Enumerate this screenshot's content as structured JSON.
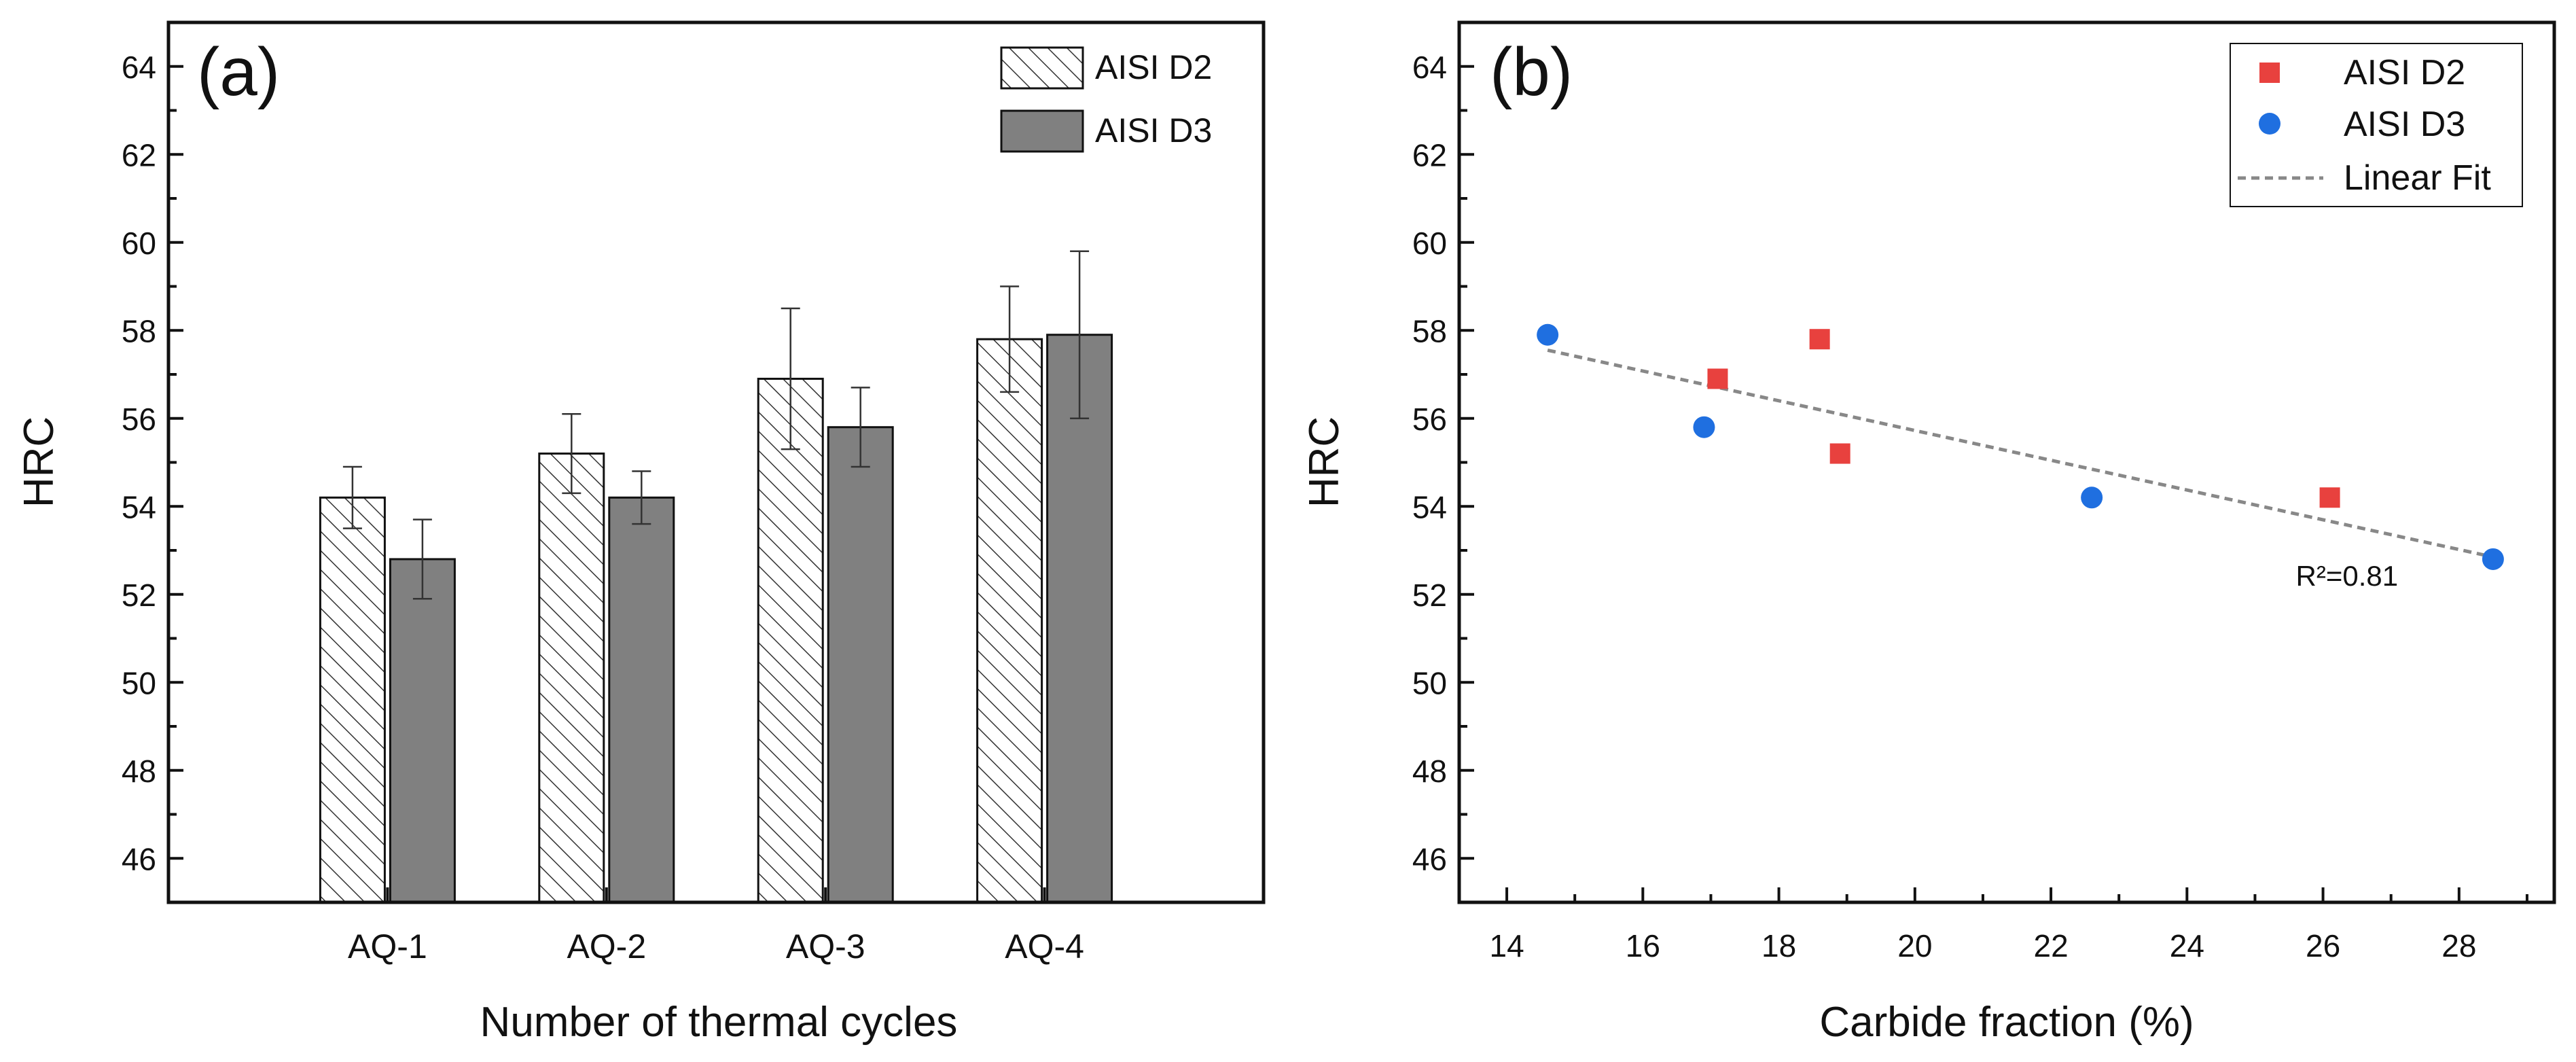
{
  "chart_data": [
    {
      "panel_label": "(a)",
      "type": "bar",
      "title": "",
      "xlabel": "Number of thermal cycles",
      "ylabel": "HRC",
      "ylim": [
        45,
        65
      ],
      "yticks": [
        46,
        48,
        50,
        52,
        54,
        56,
        58,
        60,
        62,
        64
      ],
      "categories": [
        "AQ-1",
        "AQ-2",
        "AQ-3",
        "AQ-4"
      ],
      "grid": false,
      "legend_position": "top-right",
      "series": [
        {
          "name": "AISI D2",
          "style": "hatched",
          "color": "#ffffff",
          "values": [
            54.2,
            55.2,
            56.9,
            57.8
          ],
          "errors": [
            0.7,
            0.9,
            1.6,
            1.2
          ]
        },
        {
          "name": "AISI D3",
          "style": "solid",
          "color": "#808080",
          "values": [
            52.8,
            54.2,
            55.8,
            57.9
          ],
          "errors": [
            0.9,
            0.6,
            0.9,
            1.9
          ]
        }
      ]
    },
    {
      "panel_label": "(b)",
      "type": "scatter",
      "title": "",
      "xlabel": "Carbide fraction (%)",
      "ylabel": "HRC",
      "xlim": [
        13.3,
        29.4
      ],
      "ylim": [
        45,
        65
      ],
      "xticks": [
        14,
        16,
        18,
        20,
        22,
        24,
        26,
        28
      ],
      "yticks": [
        46,
        48,
        50,
        52,
        54,
        56,
        58,
        60,
        62,
        64
      ],
      "grid": false,
      "legend_position": "top-right",
      "series": [
        {
          "name": "AISI D2",
          "marker": "square",
          "color": "#e8413e",
          "x": [
            17.1,
            18.6,
            18.9,
            26.1
          ],
          "y": [
            56.9,
            57.8,
            55.2,
            54.2
          ]
        },
        {
          "name": "AISI D3",
          "marker": "circle",
          "color": "#1f6fe0",
          "x": [
            14.6,
            16.9,
            22.6,
            28.5
          ],
          "y": [
            57.9,
            55.8,
            54.2,
            52.8
          ]
        }
      ],
      "fit": {
        "name": "Linear Fit",
        "color": "#888888",
        "x": [
          14.6,
          28.5
        ],
        "y": [
          57.55,
          52.85
        ]
      },
      "annotation": {
        "text": "R²=0.81",
        "x": 25.6,
        "y": 52.2,
        "color": "#555555"
      }
    }
  ]
}
